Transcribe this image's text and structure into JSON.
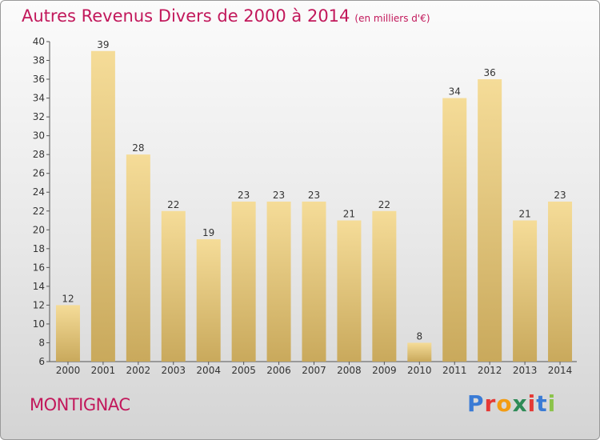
{
  "header": {
    "title": "Autres Revenus Divers de 2000 à 2014",
    "subtitle": "(en milliers d'€)"
  },
  "footer": {
    "commune": "MONTIGNAC",
    "logo": "Proxiti"
  },
  "colors": {
    "title": "#c2185b",
    "bar_light": "#f5dc98",
    "bar_dark": "#c9a95c",
    "logo": [
      "#3a7bd5",
      "#e53935",
      "#f39c12",
      "#2e8b57",
      "#e53935",
      "#3a7bd5",
      "#8bc34a"
    ]
  },
  "chart_data": {
    "type": "bar",
    "title": "Autres Revenus Divers de 2000 à 2014",
    "subtitle": "(en milliers d'€)",
    "categories": [
      "2000",
      "2001",
      "2002",
      "2003",
      "2004",
      "2005",
      "2006",
      "2007",
      "2008",
      "2009",
      "2010",
      "2011",
      "2012",
      "2013",
      "2014"
    ],
    "values": [
      12,
      39,
      28,
      22,
      19,
      23,
      23,
      23,
      21,
      22,
      8,
      34,
      36,
      21,
      23
    ],
    "ylim": [
      6,
      40
    ],
    "yticks": [
      6,
      8,
      10,
      12,
      14,
      16,
      18,
      20,
      22,
      24,
      26,
      28,
      30,
      32,
      34,
      36,
      38,
      40
    ],
    "grid": false,
    "data_labels": true
  }
}
